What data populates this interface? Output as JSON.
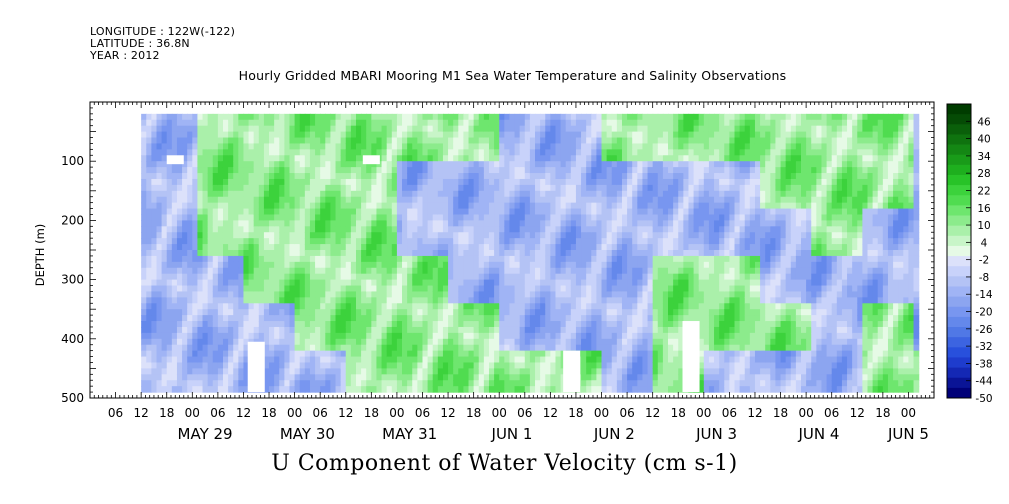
{
  "header": {
    "longitude": "LONGITUDE : 122W(-122)",
    "latitude": "LATITUDE : 36.8N",
    "year": "YEAR : 2012"
  },
  "chart_data": {
    "type": "heatmap",
    "title": "Hourly Gridded MBARI Mooring M1 Sea Water Temperature and Salinity Observations",
    "xlabel": "U Component of Water Velocity (cm s-1)",
    "ylabel": "DEPTH (m)",
    "variable_units": "cm s-1",
    "x_range_hours": [
      0,
      160
    ],
    "x_time_ticks": [
      "06",
      "12",
      "18",
      "00",
      "06",
      "12",
      "18",
      "00",
      "06",
      "12",
      "18",
      "00",
      "06",
      "12",
      "18",
      "00",
      "06",
      "12",
      "18",
      "00",
      "06",
      "12",
      "18",
      "00",
      "06",
      "12",
      "18",
      "00",
      "06",
      "12",
      "18",
      "00"
    ],
    "x_time_tick_hours": [
      6,
      12,
      18,
      24,
      30,
      36,
      42,
      48,
      54,
      60,
      66,
      72,
      78,
      84,
      90,
      96,
      102,
      108,
      114,
      120,
      126,
      132,
      138,
      144,
      150,
      156,
      162,
      168,
      174,
      180,
      186,
      192
    ],
    "x_date_labels": [
      {
        "text": "MAY 29",
        "hour": 27
      },
      {
        "text": "MAY 30",
        "hour": 51
      },
      {
        "text": "MAY 31",
        "hour": 75
      },
      {
        "text": "JUN  1",
        "hour": 99
      },
      {
        "text": "JUN  2",
        "hour": 123
      },
      {
        "text": "JUN  3",
        "hour": 147
      },
      {
        "text": "JUN  4",
        "hour": 171
      },
      {
        "text": "JUN 5",
        "hour": 192
      }
    ],
    "x_start_hour": 0,
    "x_end_hour": 198,
    "data_start_hour": 12,
    "data_end_hour": 194,
    "y_range": [
      0,
      500
    ],
    "y_ticks": [
      100,
      200,
      300,
      400,
      500
    ],
    "y_minor_step": 50,
    "data_depth_range": [
      20,
      490
    ],
    "colorbar": {
      "labels": [
        "46",
        "40",
        "34",
        "28",
        "22",
        "16",
        "10",
        "4",
        "-2",
        "-8",
        "-14",
        "-20",
        "-26",
        "-32",
        "-38",
        "-44",
        "-50"
      ],
      "min": -50,
      "max": 52,
      "step": 3,
      "negative_colors": [
        "#000078",
        "#0a1496",
        "#1428b4",
        "#1e3ccd",
        "#2850dc",
        "#3c64e1",
        "#5078e6",
        "#6488eb",
        "#7896f0",
        "#8ca5f0",
        "#a0b4f5",
        "#b4c3f5",
        "#c8d2fa",
        "#dce1fa"
      ],
      "positive_colors": [
        "#e6fae6",
        "#c8f5c8",
        "#aaf0aa",
        "#8ceb8c",
        "#6ee66e",
        "#50dc50",
        "#3cd23c",
        "#28c328",
        "#1eaf1e",
        "#199b19",
        "#148714",
        "#0f730f",
        "#0a5f0a",
        "#054b05",
        "#003c00"
      ]
    },
    "series": [
      {
        "cells": [
          [
            12,
            "-",
            "-",
            "-",
            "-",
            "-",
            "-"
          ],
          [
            24,
            "+",
            "+",
            "+",
            "-",
            "-",
            "-"
          ],
          [
            36,
            "+",
            "+",
            "+",
            "+",
            "-",
            "-"
          ],
          [
            48,
            "+",
            "+",
            "+",
            "+",
            "+",
            "-"
          ],
          [
            60,
            "+",
            "+",
            "+",
            "+",
            "+",
            "+"
          ],
          [
            72,
            "+",
            "-",
            "-",
            "+",
            "+",
            "+"
          ],
          [
            84,
            "+",
            "-",
            "-",
            "-",
            "+",
            "+"
          ],
          [
            96,
            "-",
            "-",
            "-",
            "-",
            "-",
            "+"
          ],
          [
            108,
            "-",
            "-",
            "-",
            "-",
            "-",
            "+"
          ],
          [
            120,
            "+",
            "-",
            "-",
            "-",
            "-",
            "-"
          ],
          [
            132,
            "+",
            "-",
            "-",
            "+",
            "+",
            "+"
          ],
          [
            144,
            "+",
            "-",
            "-",
            "+",
            "+",
            "-"
          ],
          [
            156,
            "+",
            "+",
            "-",
            "-",
            "+",
            "-"
          ],
          [
            168,
            "+",
            "+",
            "+",
            "-",
            "-",
            "-"
          ],
          [
            180,
            "+",
            "+",
            "-",
            "-",
            "+",
            "+"
          ],
          [
            192,
            "-",
            "-",
            "-",
            "-",
            "-",
            "+"
          ]
        ]
      }
    ],
    "missing_patches": [
      {
        "hour": 20,
        "depth": [
          90,
          105
        ]
      },
      {
        "hour": 66,
        "depth": [
          90,
          105
        ]
      },
      {
        "hour": 39,
        "depth": [
          405,
          490
        ]
      },
      {
        "hour": 113,
        "depth": [
          420,
          490
        ]
      },
      {
        "hour": 141,
        "depth": [
          370,
          490
        ]
      }
    ]
  }
}
